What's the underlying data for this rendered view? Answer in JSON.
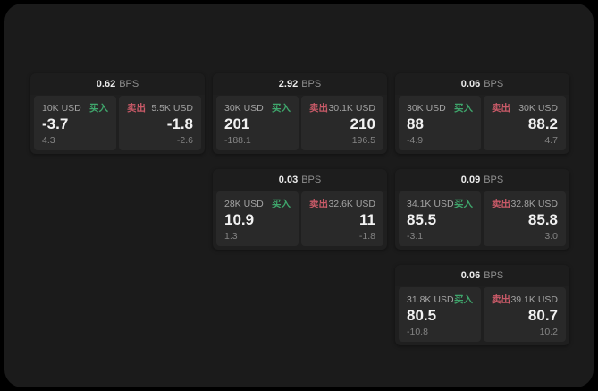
{
  "labels": {
    "bps_unit": "BPS",
    "buy": "买入",
    "sell": "卖出"
  },
  "colors": {
    "canvas": "#000000",
    "window_background": "#1b1b1b",
    "card_background": "#1f1f1f",
    "panel_background": "#292929",
    "buy_accent": "#3fa66c",
    "sell_accent": "#c95a68",
    "primary_text": "#f2f2f2",
    "muted_text": "#8f8f8f"
  },
  "cards": [
    {
      "bps": "0.62",
      "buy": {
        "size": "10K USD",
        "price": "-3.7",
        "sub": "4.3"
      },
      "sell": {
        "size": "5.5K USD",
        "price": "-1.8",
        "sub": "-2.6"
      }
    },
    {
      "bps": "2.92",
      "buy": {
        "size": "30K USD",
        "price": "201",
        "sub": "-188.1"
      },
      "sell": {
        "size": "30.1K USD",
        "price": "210",
        "sub": "196.5"
      }
    },
    {
      "bps": "0.06",
      "buy": {
        "size": "30K USD",
        "price": "88",
        "sub": "-4.9"
      },
      "sell": {
        "size": "30K USD",
        "price": "88.2",
        "sub": "4.7"
      }
    },
    {
      "bps": "0.03",
      "buy": {
        "size": "28K USD",
        "price": "10.9",
        "sub": "1.3"
      },
      "sell": {
        "size": "32.6K USD",
        "price": "11",
        "sub": "-1.8"
      }
    },
    {
      "bps": "0.09",
      "buy": {
        "size": "34.1K USD",
        "price": "85.5",
        "sub": "-3.1"
      },
      "sell": {
        "size": "32.8K USD",
        "price": "85.8",
        "sub": "3.0"
      }
    },
    {
      "bps": "0.06",
      "buy": {
        "size": "31.8K USD",
        "price": "80.5",
        "sub": "-10.8"
      },
      "sell": {
        "size": "39.1K USD",
        "price": "80.7",
        "sub": "10.2"
      }
    }
  ]
}
